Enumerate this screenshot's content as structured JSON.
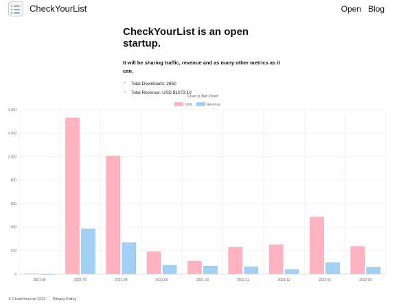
{
  "header": {
    "brand": "CheckYourList",
    "nav": [
      {
        "label": "Open"
      },
      {
        "label": "Blog"
      }
    ]
  },
  "hero": {
    "title": "CheckYourList is an open startup.",
    "subtitle": "It will be sharing traffic, revenue and as many other metrics as it can.",
    "metrics": [
      {
        "text": "Total Downloads: 3860"
      },
      {
        "text": "Total Revenue: USD $1073.10"
      }
    ]
  },
  "colors": {
    "units": "#ffb3c1",
    "units_border": "#ff9fb4",
    "revenue": "#a3d1f5",
    "revenue_border": "#8cc4f0",
    "grid": "#e9e9e9",
    "axis_text": "#666666"
  },
  "chart_data": {
    "type": "bar",
    "title": "Chart.js Bar Chart",
    "legend_position": "top",
    "categories": [
      "2021-06",
      "2021-07",
      "2021-08",
      "2021-09",
      "2021-10",
      "2021-11",
      "2021-12",
      "2022-01",
      "2022-02"
    ],
    "series": [
      {
        "name": "Units",
        "values": [
          3,
          1330,
          1005,
          190,
          110,
          230,
          250,
          485,
          235
        ]
      },
      {
        "name": "Revenue",
        "values": [
          0,
          385,
          268,
          75,
          68,
          62,
          38,
          98,
          58
        ]
      }
    ],
    "ylim": [
      0,
      1400
    ],
    "yticks": [
      0,
      200,
      400,
      600,
      800,
      1000,
      1200,
      1400
    ],
    "ytick_labels": [
      "0",
      "200",
      "400",
      "600",
      "800",
      "1,000",
      "1,200",
      "1,400"
    ],
    "grid": true
  },
  "footer": {
    "copyright": "© CheckYourList 2022",
    "privacy": "Privacy Policy"
  }
}
